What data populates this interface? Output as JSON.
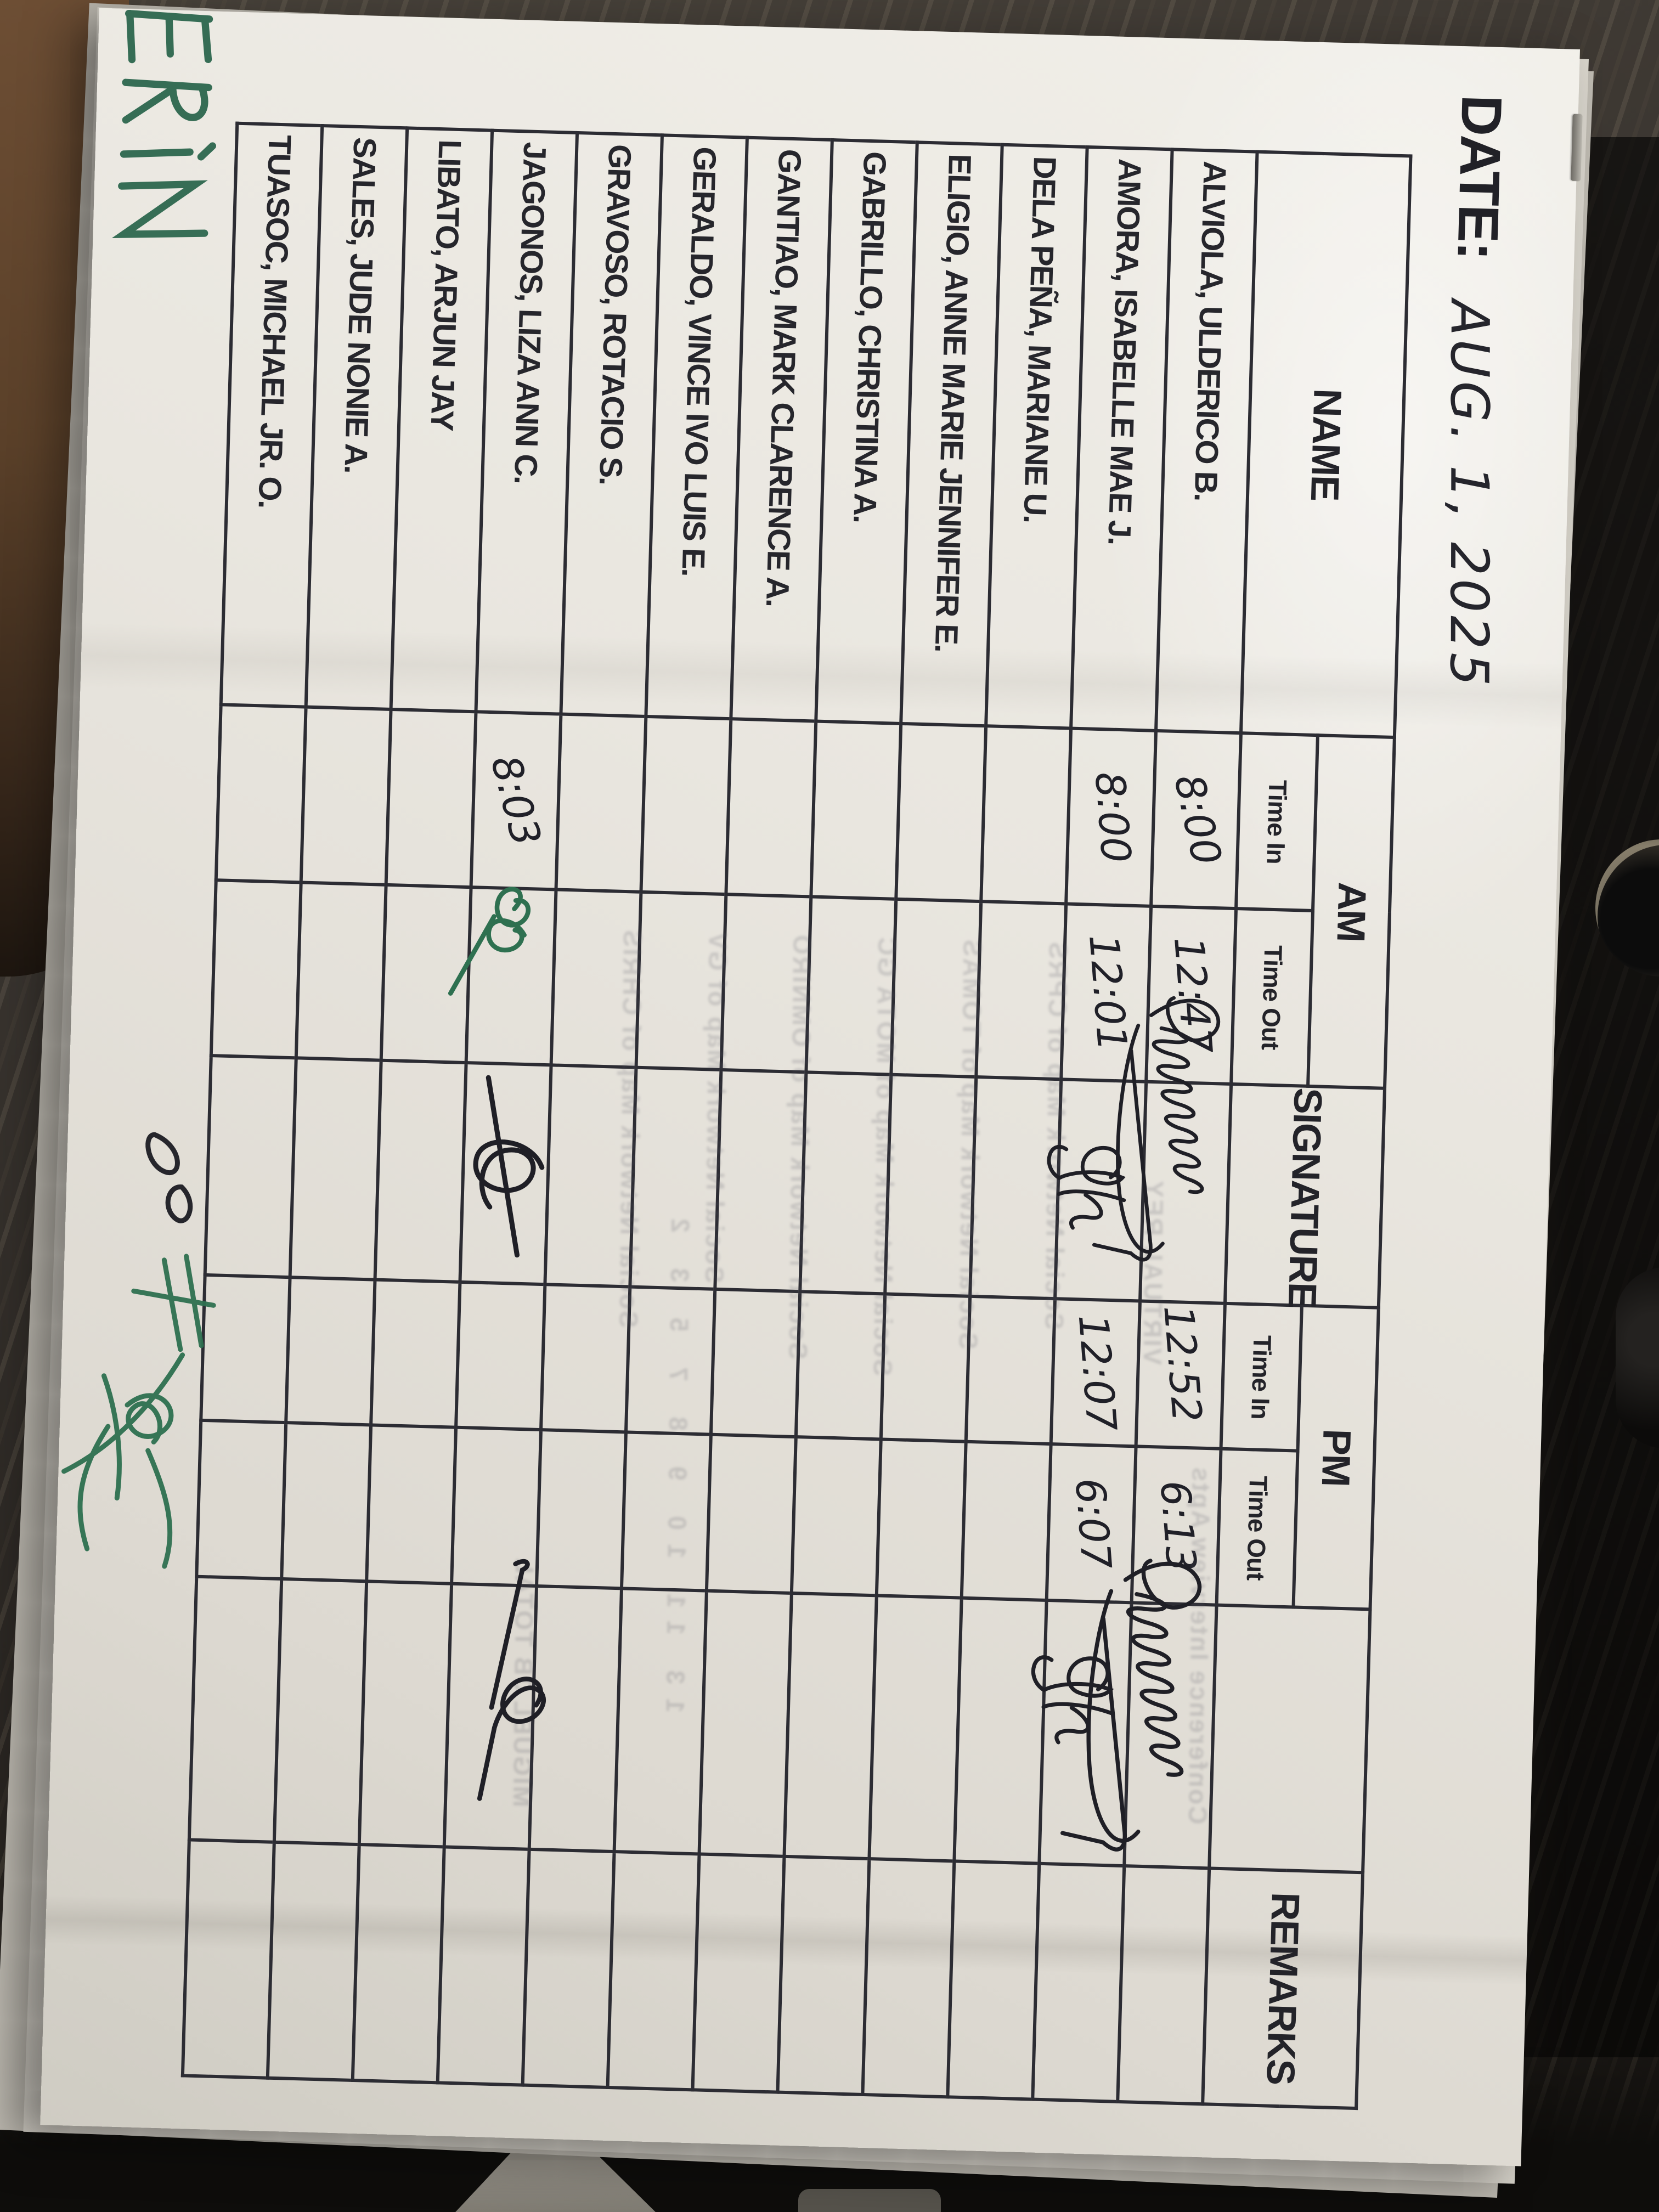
{
  "colors": {
    "paper": "#e9e6df",
    "ink": "#232329",
    "pen": "#202028",
    "green_marker": "#2e7050",
    "wood": "#3a3530"
  },
  "sheet": {
    "date_label": "DATE:",
    "date_value": "AUG. 1, 2025",
    "margin_note": "ERIN",
    "header": {
      "name": "NAME",
      "am": "AM",
      "pm": "PM",
      "signature": "SIGNATURE",
      "remarks": "REMARKS",
      "time_in": "Time In",
      "time_out": "Time Out"
    },
    "rows": [
      {
        "name": "ALVIOLA, ULDERICO B.",
        "am_in": "8:00",
        "am_out": "12:47",
        "am_sig": "loop-scrawl",
        "pm_in": "12:52",
        "pm_out": "6:13",
        "pm_sig": "loop-scrawl",
        "remarks": ""
      },
      {
        "name": "AMORA, ISABELLE MAE J.",
        "am_in": "8:00",
        "am_out": "12:01",
        "am_sig": "gab",
        "pm_in": "12:07",
        "pm_out": "6:07",
        "pm_sig": "gab",
        "remarks": ""
      },
      {
        "name": "DELA PEÑA, MARIANE U.",
        "am_in": "",
        "am_out": "",
        "am_sig": null,
        "pm_in": "",
        "pm_out": "",
        "pm_sig": null,
        "remarks": ""
      },
      {
        "name": "ELIGIO, ANNE MARIE JENNIFER E.",
        "am_in": "",
        "am_out": "",
        "am_sig": null,
        "pm_in": "",
        "pm_out": "",
        "pm_sig": null,
        "remarks": ""
      },
      {
        "name": "GABRILLO, CHRISTINA A.",
        "am_in": "",
        "am_out": "",
        "am_sig": null,
        "pm_in": "",
        "pm_out": "",
        "pm_sig": null,
        "remarks": ""
      },
      {
        "name": "GANTIAO, MARK CLARENCE A.",
        "am_in": "",
        "am_out": "",
        "am_sig": null,
        "pm_in": "",
        "pm_out": "",
        "pm_sig": null,
        "remarks": ""
      },
      {
        "name": "GERALDO, VINCE IVO LUIS E.",
        "am_in": "",
        "am_out": "",
        "am_sig": null,
        "pm_in": "",
        "pm_out": "",
        "pm_sig": null,
        "remarks": ""
      },
      {
        "name": "GRAVOSO, ROTACIO S.",
        "am_in": "",
        "am_out": "",
        "am_sig": null,
        "pm_in": "",
        "pm_out": "",
        "pm_sig": null,
        "remarks": ""
      },
      {
        "name": "JAGONOS, LIZA ANN C.",
        "am_in": "8:03",
        "am_out": "",
        "am_out_mark": "green-scribble",
        "am_sig": "x-scribble",
        "pm_in": "",
        "pm_out": "",
        "pm_sig": "arrow-scrawl",
        "remarks": ""
      },
      {
        "name": "LIBATO, ARJUN JAY",
        "am_in": "",
        "am_out": "",
        "am_sig": null,
        "pm_in": "",
        "pm_out": "",
        "pm_sig": null,
        "remarks": ""
      },
      {
        "name": "SALES, JUDE NONIE A.",
        "am_in": "",
        "am_out": "",
        "am_sig": null,
        "pm_in": "",
        "pm_out": "",
        "pm_sig": null,
        "remarks": ""
      },
      {
        "name": "TUASOC, MICHAEL JR. O.",
        "am_in": "",
        "am_out": "",
        "am_sig": null,
        "pm_in": "",
        "pm_out": "",
        "pm_sig": null,
        "remarks": ""
      }
    ]
  },
  "bleedthrough": {
    "snippets": [
      "Social Network Map of CPRS",
      "Social Network Map of TOMAS",
      "Social Network Map of MOTA GC",
      "Social Network Map of OMNIRO",
      "Social Network Map of GV",
      "Social Network Map of CHRIS",
      "13 11 10 9 8 7 5 3 2",
      "MIGUEL JB TOTAL",
      "Conference Interview Apts",
      "VIRTUAL REY"
    ]
  }
}
